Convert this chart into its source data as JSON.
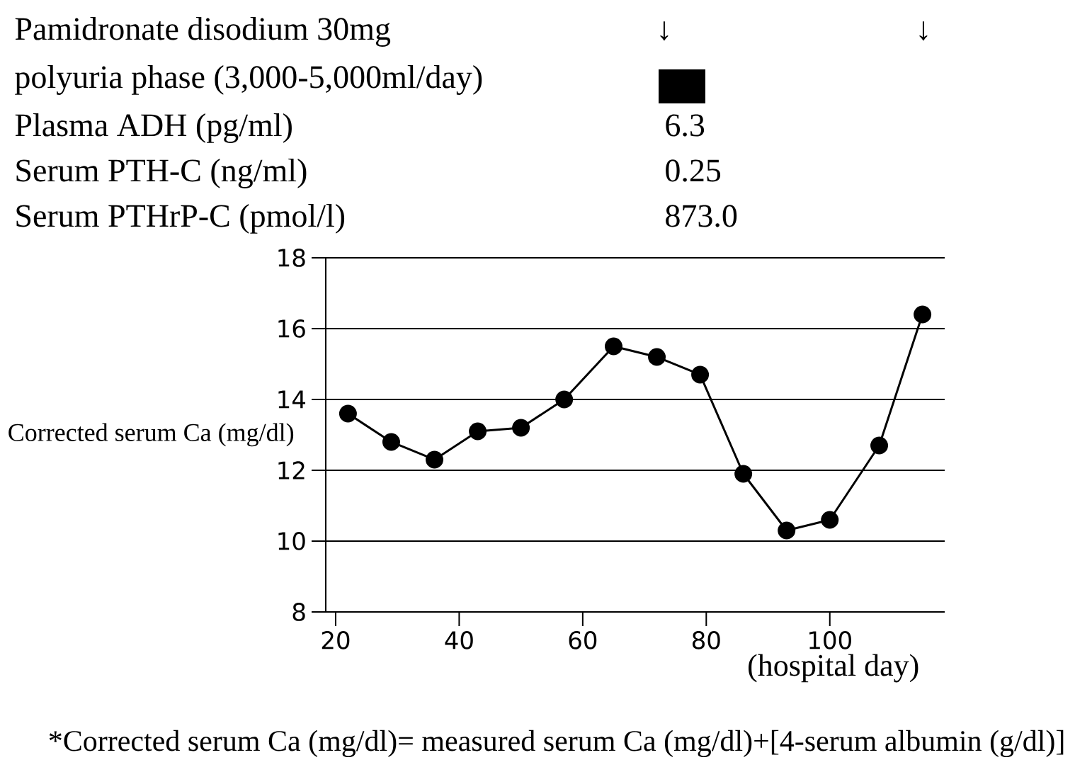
{
  "chart_data": {
    "type": "line",
    "x": [
      22,
      29,
      36,
      43,
      50,
      57,
      65,
      72,
      79,
      86,
      93,
      100,
      108,
      115
    ],
    "values": [
      13.6,
      12.8,
      12.3,
      13.1,
      13.2,
      14.0,
      15.5,
      15.2,
      14.7,
      11.9,
      10.3,
      10.6,
      12.7,
      16.4
    ],
    "color": "#000000",
    "marker": "circle",
    "line_style": "solid",
    "xlim": [
      18.4,
      118.6
    ],
    "ylim": [
      8,
      18
    ],
    "xticks": [
      20,
      40,
      60,
      80,
      100
    ],
    "yticks": [
      8,
      10,
      12,
      14,
      16,
      18
    ],
    "grid": "y",
    "xlabel": "(hospital day)",
    "ylabel": "Corrected serum Ca (mg/dl)",
    "annotations": [
      "Pamidronate disodium    30mg",
      "↓",
      "↓",
      "polyuria phase (3,000-5,000ml/day)",
      "Plasma ADH (pg/ml)",
      "6.3",
      "Serum PTH-C (ng/ml)",
      "0.25",
      "Serum PTHrP-C (pmol/l)",
      "873.0",
      "*Corrected serum Ca (mg/dl)= measured serum Ca (mg/dl)+[4-serum albumin (g/dl)]"
    ]
  }
}
